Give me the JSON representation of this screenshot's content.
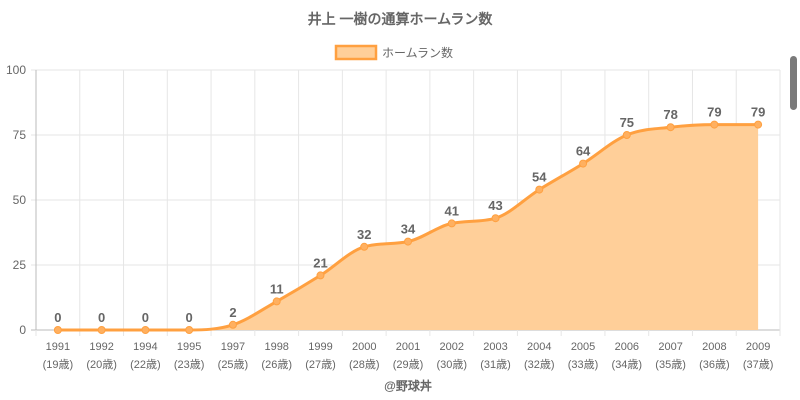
{
  "chart_data": {
    "type": "area",
    "title": "井上 一樹の通算ホームラン数",
    "legend": {
      "label": "ホームラン数",
      "placement": "top-center"
    },
    "categories": [
      "1991",
      "1992",
      "1994",
      "1995",
      "1997",
      "1998",
      "1999",
      "2000",
      "2001",
      "2002",
      "2003",
      "2004",
      "2005",
      "2006",
      "2007",
      "2008",
      "2009"
    ],
    "sublabels": [
      "(19歳)",
      "(20歳)",
      "(22歳)",
      "(23歳)",
      "(25歳)",
      "(26歳)",
      "(27歳)",
      "(28歳)",
      "(29歳)",
      "(30歳)",
      "(31歳)",
      "(32歳)",
      "(33歳)",
      "(34歳)",
      "(35歳)",
      "(36歳)",
      "(37歳)"
    ],
    "series": [
      {
        "name": "ホームラン数",
        "values": [
          0,
          0,
          0,
          0,
          2,
          11,
          21,
          32,
          34,
          41,
          43,
          54,
          64,
          75,
          78,
          79,
          79
        ]
      }
    ],
    "ylim": [
      0,
      100
    ],
    "yticks": [
      0,
      25,
      50,
      75,
      100
    ],
    "grid": true,
    "xlabel": "",
    "ylabel": "",
    "colors": {
      "line": "#ffa040",
      "fill": "#ffcf99",
      "point": "#ffb060",
      "label": "#666666"
    }
  },
  "credit": "@野球丼"
}
